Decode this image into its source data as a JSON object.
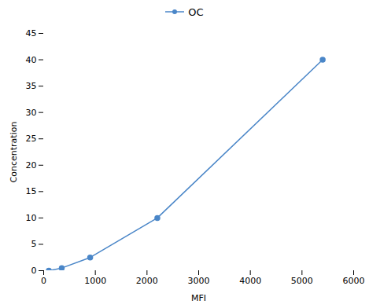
{
  "chart_data": {
    "type": "line",
    "xlabel": "MFI",
    "ylabel": "Concentration",
    "x": [
      100,
      350,
      900,
      2200,
      5400
    ],
    "series": [
      {
        "name": "OC",
        "color": "#4a86c8",
        "marker": "circle",
        "values": [
          0,
          0.5,
          2.5,
          10,
          40
        ]
      }
    ],
    "xlim": [
      0,
      6000
    ],
    "ylim": [
      0,
      45
    ],
    "xticks": [
      0,
      1000,
      2000,
      3000,
      4000,
      5000,
      6000
    ],
    "yticks": [
      0,
      5,
      10,
      15,
      20,
      25,
      30,
      35,
      40,
      45
    ],
    "legend": "top",
    "grid": false
  }
}
